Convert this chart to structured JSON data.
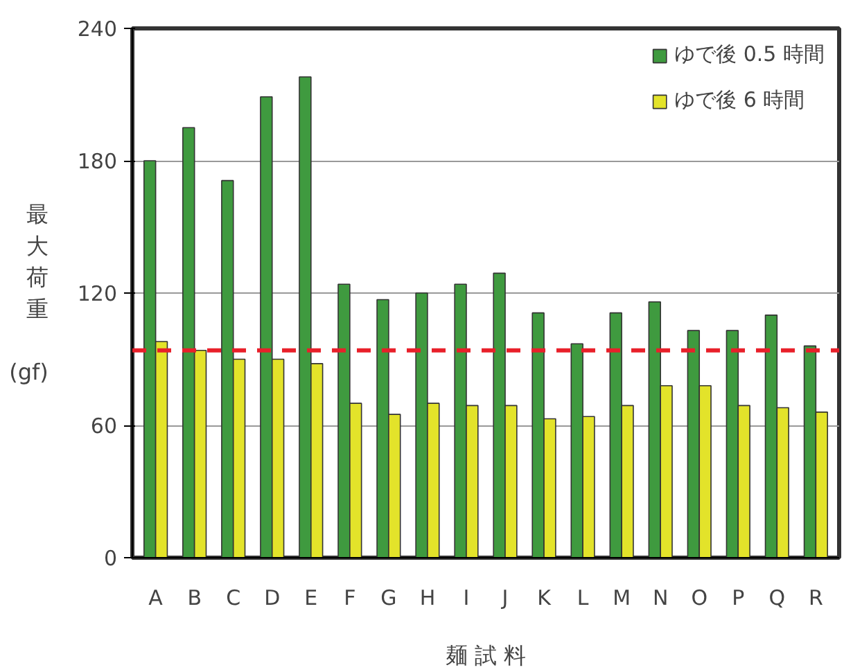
{
  "chart_data": {
    "type": "bar",
    "xlabel": "麺 試 料",
    "ylabel": "最大荷重 (gf)",
    "categories": [
      "A",
      "B",
      "C",
      "D",
      "E",
      "F",
      "G",
      "H",
      "I",
      "J",
      "K",
      "L",
      "M",
      "N",
      "O",
      "P",
      "Q",
      "R"
    ],
    "series": [
      {
        "name": "ゆで後 0.5 時間",
        "color": "#3f9a3f",
        "values": [
          180,
          195,
          171,
          209,
          218,
          124,
          117,
          120,
          124,
          129,
          111,
          97,
          111,
          116,
          103,
          103,
          110,
          96
        ]
      },
      {
        "name": "ゆで後 6 時間",
        "color": "#e3e32a",
        "values": [
          98,
          94,
          90,
          90,
          88,
          70,
          65,
          70,
          69,
          69,
          63,
          64,
          69,
          78,
          78,
          69,
          68,
          66
        ]
      }
    ],
    "ylim": [
      0,
      240
    ],
    "yticks": [
      0,
      60,
      120,
      180,
      240
    ],
    "grid": "y",
    "legend": "top right",
    "ref_lines": [
      {
        "axis": "y",
        "value": 94,
        "color": "#e8202a",
        "line_style": "dashed"
      }
    ]
  }
}
